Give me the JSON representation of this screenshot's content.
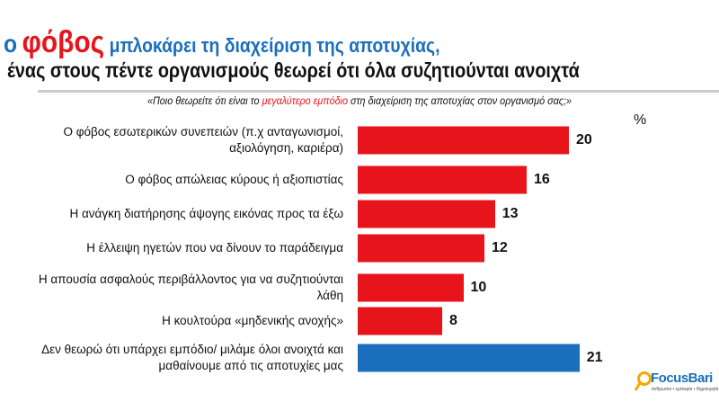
{
  "title": {
    "prefix": "ο",
    "highlight": "φόβος",
    "rest": "μπλοκάρει τη διαχείριση της αποτυχίας,",
    "line2": "ένας στους πέντε οργανισμούς θεωρεί ότι όλα συζητιούνται ανοιχτά"
  },
  "question": {
    "before": "«Ποιο θεωρείτε ότι είναι το",
    "highlight": "μεγαλύτερο εμπόδιο",
    "after": "στη διαχείριση της αποτυχίας στον οργανισμό σας;»"
  },
  "unit": "%",
  "logo": {
    "name": "FocusBari",
    "tagline": "άνθρωποι • εμπειρία • δημιουργία"
  },
  "colors": {
    "red": "#e8141c",
    "blue": "#1a6fbd"
  },
  "chart_data": {
    "type": "bar",
    "orientation": "horizontal",
    "xlim": [
      0,
      21
    ],
    "grid": false,
    "categories": [
      "Ο φόβος εσωτερικών συνεπειών (π.χ ανταγωνισμοί, αξιολόγηση, καριέρα)",
      "Ο φόβος απώλειας κύρους ή αξιοπιστίας",
      "Η ανάγκη διατήρησης άψογης εικόνας προς τα έξω",
      "Η έλλειψη ηγετών που να δίνουν το παράδειγμα",
      "Η απουσία ασφαλούς περιβάλλοντος για να συζητιούνται λάθη",
      "Η κουλτούρα «μηδενικής ανοχής»",
      "Δεν θεωρώ ότι υπάρχει εμπόδιο/ μιλάμε όλοι ανοιχτά και μαθαίνουμε από τις αποτυχίες μας"
    ],
    "values": [
      20,
      16,
      13,
      12,
      10,
      8,
      21
    ],
    "bar_colors": [
      "#e8141c",
      "#e8141c",
      "#e8141c",
      "#e8141c",
      "#e8141c",
      "#e8141c",
      "#1a6fbd"
    ]
  }
}
